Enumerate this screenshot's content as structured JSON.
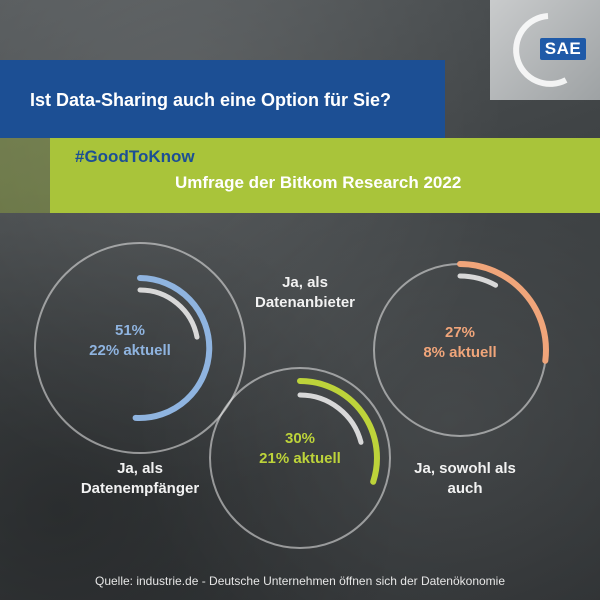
{
  "brand": {
    "logo_text": "SAE"
  },
  "header": {
    "question": "Ist Data-Sharing auch eine Option für Sie?",
    "hashtag": "#GoodToKnow",
    "survey": "Umfrage der Bitkom Research 2022"
  },
  "colors": {
    "blue": "#1c4f94",
    "green_band": "#a9c43a",
    "recipient": "#8fb4e0",
    "provider": "#bdd33a",
    "both": "#f0a57a",
    "current_arc": "#d8d8d8"
  },
  "chart_data": {
    "type": "donut-gauge",
    "unit": "%",
    "series": [
      {
        "label": "Ja, als Datenempfänger",
        "value": 51,
        "current": 22,
        "value_text": "51%",
        "current_text": "22% aktuell"
      },
      {
        "label": "Ja, als Datenanbieter",
        "value": 30,
        "current": 21,
        "value_text": "30%",
        "current_text": "21% aktuell"
      },
      {
        "label": "Ja, sowohl als auch",
        "value": 27,
        "current": 8,
        "value_text": "27%",
        "current_text": "8% aktuell"
      }
    ]
  },
  "labels": {
    "recipient_line1": "Ja, als",
    "recipient_line2": "Datenempfänger",
    "provider_line1": "Ja, als",
    "provider_line2": "Datenanbieter",
    "both_line1": "Ja, sowohl als",
    "both_line2": "auch"
  },
  "footer": {
    "source": "Quelle: industrie.de - Deutsche Unternehmen öffnen sich der Datenökonomie"
  }
}
